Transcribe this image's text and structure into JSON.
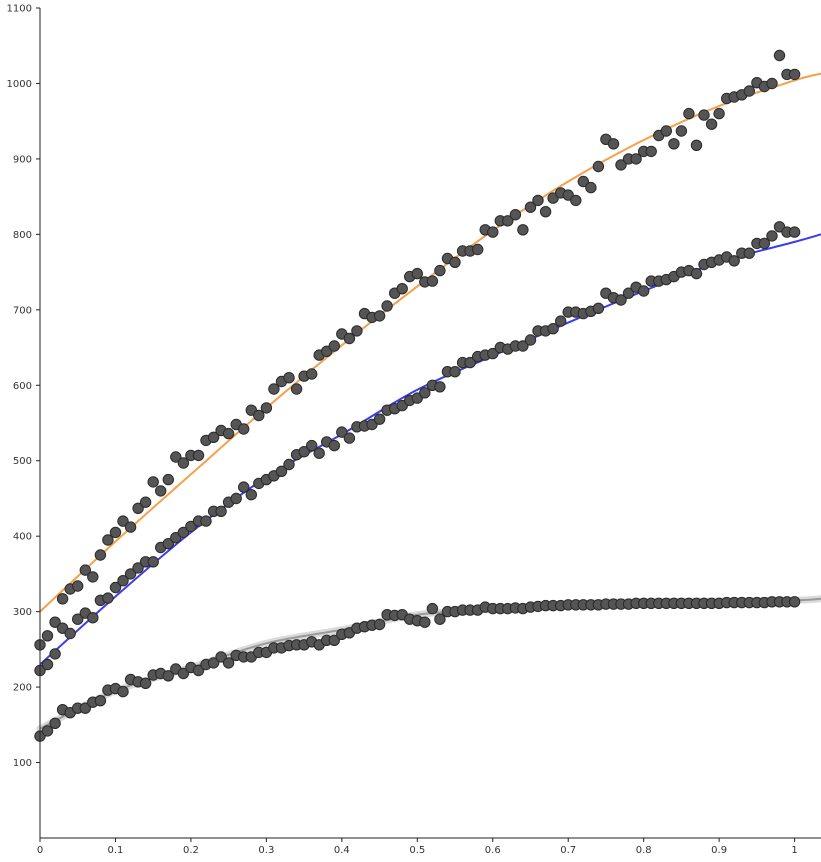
{
  "chart_data": {
    "type": "scatter",
    "title": "",
    "xlabel": "",
    "ylabel": "",
    "xlim": [
      0,
      1.035
    ],
    "ylim": [
      0,
      1100
    ],
    "x_ticks": [
      0,
      0.1,
      0.2,
      0.3,
      0.4,
      0.5,
      0.6,
      0.7,
      0.8,
      0.9,
      1
    ],
    "y_ticks": [
      100,
      200,
      300,
      400,
      500,
      600,
      700,
      800,
      900,
      1000,
      1100
    ],
    "grid": false,
    "legend": "none",
    "marker_color": "#555555",
    "series": [
      {
        "fit_color": "#F5A04A",
        "fit": {
          "x": [
            0,
            0.1,
            0.2,
            0.3,
            0.4,
            0.5,
            0.6,
            0.7,
            0.8,
            0.9,
            1.0,
            1.035
          ],
          "y": [
            300,
            393,
            482,
            570,
            653,
            731,
            805,
            870,
            925,
            970,
            1004,
            1013
          ]
        },
        "x": [
          0,
          0.01,
          0.02,
          0.03,
          0.04,
          0.05,
          0.06,
          0.07,
          0.08,
          0.09,
          0.1,
          0.11,
          0.12,
          0.13,
          0.14,
          0.15,
          0.16,
          0.17,
          0.18,
          0.19,
          0.2,
          0.21,
          0.22,
          0.23,
          0.24,
          0.25,
          0.26,
          0.27,
          0.28,
          0.29,
          0.3,
          0.31,
          0.32,
          0.33,
          0.34,
          0.35,
          0.36,
          0.37,
          0.38,
          0.39,
          0.4,
          0.41,
          0.42,
          0.43,
          0.44,
          0.45,
          0.46,
          0.47,
          0.48,
          0.49,
          0.5,
          0.51,
          0.52,
          0.53,
          0.54,
          0.55,
          0.56,
          0.57,
          0.58,
          0.59,
          0.6,
          0.61,
          0.62,
          0.63,
          0.64,
          0.65,
          0.66,
          0.67,
          0.68,
          0.69,
          0.7,
          0.71,
          0.72,
          0.73,
          0.74,
          0.75,
          0.76,
          0.77,
          0.78,
          0.79,
          0.8,
          0.81,
          0.82,
          0.83,
          0.84,
          0.85,
          0.86,
          0.87,
          0.88,
          0.89,
          0.9,
          0.91,
          0.92,
          0.93,
          0.94,
          0.95,
          0.96,
          0.97,
          0.98,
          0.99,
          1.0
        ],
        "y": [
          256,
          268,
          286,
          317,
          330,
          334,
          355,
          346,
          375,
          395,
          405,
          420,
          412,
          437,
          445,
          472,
          460,
          475,
          505,
          497,
          507,
          507,
          527,
          531,
          540,
          536,
          548,
          542,
          567,
          560,
          570,
          595,
          605,
          610,
          595,
          612,
          615,
          640,
          645,
          652,
          668,
          662,
          672,
          695,
          690,
          692,
          705,
          722,
          728,
          744,
          748,
          737,
          738,
          752,
          768,
          763,
          778,
          778,
          780,
          806,
          803,
          818,
          818,
          826,
          806,
          836,
          845,
          830,
          848,
          855,
          852,
          845,
          870,
          862,
          890,
          926,
          920,
          892,
          900,
          900,
          910,
          910,
          931,
          937,
          920,
          937,
          960,
          918,
          958,
          946,
          960,
          980,
          982,
          985,
          990,
          1001,
          996,
          1000,
          1037,
          1012,
          1012
        ]
      },
      {
        "fit_color": "#3B3BF0",
        "fit": {
          "x": [
            0,
            0.1,
            0.2,
            0.3,
            0.4,
            0.5,
            0.6,
            0.7,
            0.8,
            0.9,
            1.0,
            1.035
          ],
          "y": [
            230,
            320,
            405,
            478,
            535,
            594,
            639,
            683,
            725,
            763,
            790,
            800
          ]
        },
        "x": [
          0,
          0.01,
          0.02,
          0.03,
          0.04,
          0.05,
          0.06,
          0.07,
          0.08,
          0.09,
          0.1,
          0.11,
          0.12,
          0.13,
          0.14,
          0.15,
          0.16,
          0.17,
          0.18,
          0.19,
          0.2,
          0.21,
          0.22,
          0.23,
          0.24,
          0.25,
          0.26,
          0.27,
          0.28,
          0.29,
          0.3,
          0.31,
          0.32,
          0.33,
          0.34,
          0.35,
          0.36,
          0.37,
          0.38,
          0.39,
          0.4,
          0.41,
          0.42,
          0.43,
          0.44,
          0.45,
          0.46,
          0.47,
          0.48,
          0.49,
          0.5,
          0.51,
          0.52,
          0.53,
          0.54,
          0.55,
          0.56,
          0.57,
          0.58,
          0.59,
          0.6,
          0.61,
          0.62,
          0.63,
          0.64,
          0.65,
          0.66,
          0.67,
          0.68,
          0.69,
          0.7,
          0.71,
          0.72,
          0.73,
          0.74,
          0.75,
          0.76,
          0.77,
          0.78,
          0.79,
          0.8,
          0.81,
          0.82,
          0.83,
          0.84,
          0.85,
          0.86,
          0.87,
          0.88,
          0.89,
          0.9,
          0.91,
          0.92,
          0.93,
          0.94,
          0.95,
          0.96,
          0.97,
          0.98,
          0.99,
          1.0
        ],
        "y": [
          222,
          230,
          244,
          278,
          271,
          290,
          298,
          292,
          315,
          318,
          332,
          341,
          350,
          358,
          366,
          366,
          385,
          390,
          398,
          405,
          413,
          420,
          420,
          433,
          433,
          445,
          450,
          465,
          455,
          470,
          475,
          480,
          486,
          495,
          508,
          512,
          520,
          510,
          525,
          520,
          538,
          530,
          545,
          546,
          548,
          555,
          567,
          569,
          573,
          580,
          583,
          590,
          600,
          598,
          618,
          618,
          630,
          630,
          638,
          640,
          642,
          650,
          648,
          652,
          652,
          660,
          672,
          672,
          675,
          685,
          697,
          697,
          695,
          698,
          702,
          722,
          716,
          713,
          722,
          730,
          725,
          738,
          738,
          740,
          744,
          750,
          752,
          748,
          760,
          763,
          766,
          770,
          765,
          775,
          775,
          788,
          788,
          798,
          810,
          803,
          803
        ]
      },
      {
        "fit_color": "#999999",
        "fit": {
          "x": [
            0,
            0.1,
            0.2,
            0.3,
            0.4,
            0.5,
            0.6,
            0.7,
            0.8,
            0.9,
            1.0,
            1.035
          ],
          "y": [
            145,
            195,
            226,
            258,
            276,
            296,
            303,
            310,
            313,
            314,
            315,
            317
          ]
        },
        "x": [
          0,
          0.01,
          0.02,
          0.03,
          0.04,
          0.05,
          0.06,
          0.07,
          0.08,
          0.09,
          0.1,
          0.11,
          0.12,
          0.13,
          0.14,
          0.15,
          0.16,
          0.17,
          0.18,
          0.19,
          0.2,
          0.21,
          0.22,
          0.23,
          0.24,
          0.25,
          0.26,
          0.27,
          0.28,
          0.29,
          0.3,
          0.31,
          0.32,
          0.33,
          0.34,
          0.35,
          0.36,
          0.37,
          0.38,
          0.39,
          0.4,
          0.41,
          0.42,
          0.43,
          0.44,
          0.45,
          0.46,
          0.47,
          0.48,
          0.49,
          0.5,
          0.51,
          0.52,
          0.53,
          0.54,
          0.55,
          0.56,
          0.57,
          0.58,
          0.59,
          0.6,
          0.61,
          0.62,
          0.63,
          0.64,
          0.65,
          0.66,
          0.67,
          0.68,
          0.69,
          0.7,
          0.71,
          0.72,
          0.73,
          0.74,
          0.75,
          0.76,
          0.77,
          0.78,
          0.79,
          0.8,
          0.81,
          0.82,
          0.83,
          0.84,
          0.85,
          0.86,
          0.87,
          0.88,
          0.89,
          0.9,
          0.91,
          0.92,
          0.93,
          0.94,
          0.95,
          0.96,
          0.97,
          0.98,
          0.99,
          1.0
        ],
        "y": [
          135,
          142,
          152,
          170,
          166,
          172,
          172,
          180,
          182,
          196,
          198,
          194,
          210,
          207,
          205,
          216,
          218,
          215,
          224,
          218,
          226,
          222,
          230,
          232,
          240,
          232,
          242,
          240,
          240,
          246,
          246,
          252,
          252,
          255,
          256,
          256,
          260,
          256,
          262,
          262,
          270,
          272,
          278,
          280,
          282,
          283,
          296,
          295,
          296,
          290,
          288,
          286,
          304,
          290,
          300,
          300,
          302,
          302,
          302,
          306,
          304,
          304,
          304,
          305,
          304,
          306,
          307,
          308,
          308,
          308,
          309,
          309,
          309,
          309,
          309,
          310,
          310,
          310,
          310,
          311,
          311,
          311,
          311,
          311,
          311,
          311,
          311,
          311,
          311,
          311,
          311,
          312,
          312,
          312,
          312,
          312,
          312,
          313,
          313,
          313,
          313
        ]
      }
    ]
  }
}
